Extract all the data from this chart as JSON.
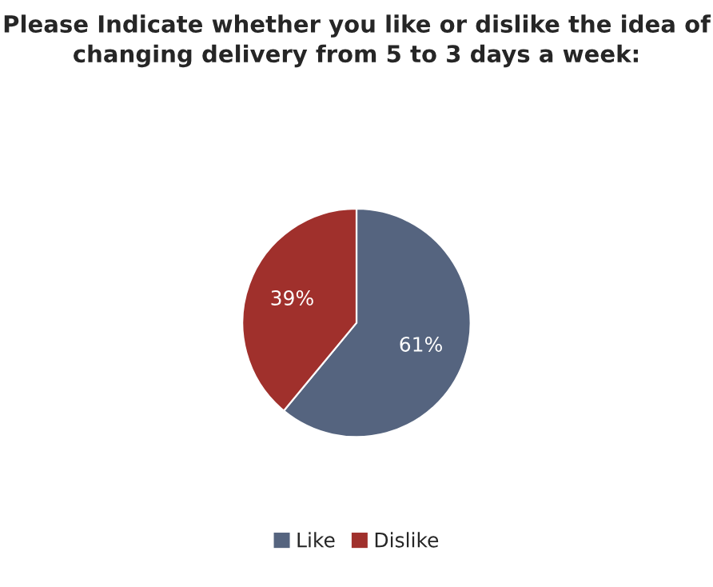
{
  "chart_data": {
    "type": "pie",
    "title": "Please Indicate whether you like or dislike the idea of changing delivery from 5 to 3 days a week:",
    "categories": [
      "Like",
      "Dislike"
    ],
    "values": [
      61,
      39
    ],
    "colors": [
      "#55647f",
      "#a0302c"
    ],
    "value_labels": [
      "61%",
      "39%"
    ],
    "legend": "bottom"
  }
}
